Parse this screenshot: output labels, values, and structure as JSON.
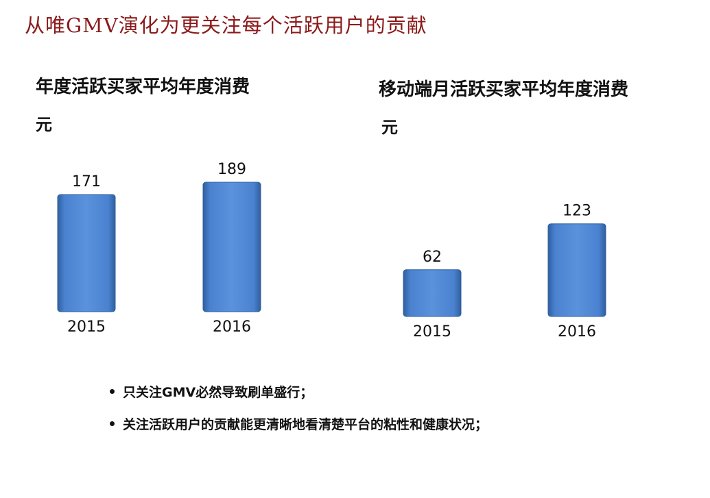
{
  "slide_title": "从唯GMV演化为更关注每个活跃用户的贡献",
  "charts": [
    {
      "title": "年度活跃买家平均年度消费",
      "unit": "元"
    },
    {
      "title": "移动端月活跃买家平均年度消费",
      "unit": "元"
    }
  ],
  "chart_data": [
    {
      "type": "bar",
      "title": "年度活跃买家平均年度消费",
      "ylabel": "元",
      "categories": [
        "2015",
        "2016"
      ],
      "values": [
        171,
        189
      ]
    },
    {
      "type": "bar",
      "title": "移动端月活跃买家平均年度消费",
      "ylabel": "元",
      "categories": [
        "2015",
        "2016"
      ],
      "values": [
        62,
        123
      ]
    }
  ],
  "bullets": [
    "只关注GMV必然导致刷单盛行；",
    "关注活跃用户的贡献能更清晰地看清楚平台的粘性和健康状况；"
  ],
  "colors": {
    "title": "#8b1a1a",
    "bar": "#4a82d0",
    "bar_dark": "#2f5f9e"
  }
}
